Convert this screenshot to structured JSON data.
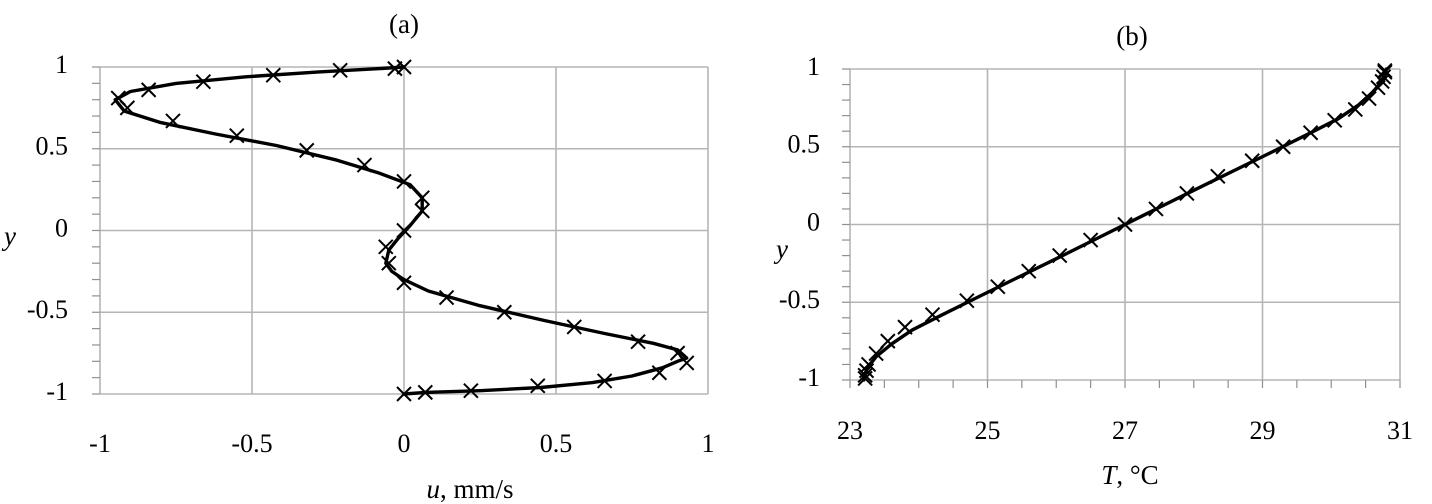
{
  "chart_data": [
    {
      "type": "line",
      "title": "(a)",
      "xlabel_var": "u",
      "xlabel_unit": ", mm/s",
      "ylabel": "y",
      "xlim": [
        -1,
        1
      ],
      "ylim": [
        -1,
        1
      ],
      "x_ticks": [
        "-1",
        "-0.5",
        "0",
        "0.5",
        "1"
      ],
      "y_ticks": [
        "1",
        "0.5",
        "0",
        "-0.5",
        "-1"
      ],
      "grid": true,
      "series": [
        {
          "style": "solid line",
          "x": [
            0.0,
            0.07,
            0.25,
            0.45,
            0.62,
            0.75,
            0.85,
            0.9,
            0.93,
            0.9,
            0.82,
            0.66,
            0.46,
            0.25,
            0.08,
            0.0,
            -0.04,
            -0.06,
            -0.05,
            -0.02,
            0.02,
            0.06,
            0.06,
            0.02,
            -0.08,
            -0.22,
            -0.42,
            -0.62,
            -0.8,
            -0.92,
            -0.95,
            -0.9,
            -0.75,
            -0.52,
            -0.28,
            -0.08,
            0.0
          ],
          "y": [
            -1.0,
            -0.99,
            -0.98,
            -0.96,
            -0.93,
            -0.89,
            -0.84,
            -0.8,
            -0.78,
            -0.73,
            -0.69,
            -0.63,
            -0.55,
            -0.46,
            -0.37,
            -0.3,
            -0.25,
            -0.2,
            -0.12,
            -0.05,
            0.03,
            0.12,
            0.2,
            0.28,
            0.35,
            0.43,
            0.52,
            0.59,
            0.66,
            0.73,
            0.8,
            0.85,
            0.9,
            0.94,
            0.97,
            0.99,
            1.0
          ]
        },
        {
          "style": "x markers",
          "x": [
            0.0,
            0.07,
            0.22,
            0.44,
            0.66,
            0.84,
            0.93,
            0.9,
            0.77,
            0.56,
            0.33,
            0.14,
            0.0,
            -0.05,
            -0.06,
            0.0,
            0.06,
            0.06,
            0.0,
            -0.13,
            -0.32,
            -0.55,
            -0.76,
            -0.91,
            -0.94,
            -0.84,
            -0.66,
            -0.43,
            -0.21,
            -0.03,
            0.0
          ],
          "y": [
            -1.0,
            -0.99,
            -0.98,
            -0.95,
            -0.92,
            -0.87,
            -0.81,
            -0.75,
            -0.68,
            -0.59,
            -0.5,
            -0.41,
            -0.32,
            -0.2,
            -0.1,
            0.0,
            0.12,
            0.2,
            0.3,
            0.4,
            0.49,
            0.58,
            0.67,
            0.75,
            0.81,
            0.86,
            0.91,
            0.95,
            0.98,
            0.99,
            1.0
          ]
        }
      ]
    },
    {
      "type": "line",
      "title": "(b)",
      "xlabel_var": "T",
      "xlabel_unit": ", °C",
      "ylabel": "y",
      "xlim": [
        23,
        31
      ],
      "ylim": [
        -1,
        1
      ],
      "x_ticks": [
        "23",
        "25",
        "27",
        "29",
        "31"
      ],
      "y_ticks": [
        "1",
        "0.5",
        "0",
        "-0.5",
        "-1"
      ],
      "grid": true,
      "series": [
        {
          "style": "solid line",
          "x": [
            23.2,
            23.24,
            23.38,
            23.6,
            23.9,
            24.3,
            24.8,
            25.4,
            26.0,
            26.5,
            27.0,
            27.5,
            28.0,
            28.6,
            29.2,
            29.7,
            30.1,
            30.4,
            30.6,
            30.76,
            30.8
          ],
          "y": [
            -1.0,
            -0.93,
            -0.85,
            -0.77,
            -0.68,
            -0.59,
            -0.48,
            -0.35,
            -0.22,
            -0.11,
            0.0,
            0.11,
            0.22,
            0.35,
            0.48,
            0.59,
            0.68,
            0.77,
            0.85,
            0.93,
            1.0
          ]
        },
        {
          "style": "x markers",
          "x": [
            23.22,
            23.22,
            23.24,
            23.27,
            23.38,
            23.55,
            23.8,
            24.2,
            24.7,
            25.15,
            25.6,
            26.05,
            26.5,
            27.0,
            27.45,
            27.9,
            28.35,
            28.85,
            29.3,
            29.7,
            30.05,
            30.35,
            30.55,
            30.68,
            30.74,
            30.76,
            30.78,
            30.78
          ],
          "y": [
            -0.99,
            -0.97,
            -0.94,
            -0.9,
            -0.83,
            -0.75,
            -0.66,
            -0.58,
            -0.49,
            -0.4,
            -0.3,
            -0.2,
            -0.1,
            0.0,
            0.1,
            0.2,
            0.31,
            0.41,
            0.5,
            0.59,
            0.67,
            0.74,
            0.81,
            0.88,
            0.92,
            0.95,
            0.98,
            0.99
          ]
        }
      ]
    }
  ]
}
